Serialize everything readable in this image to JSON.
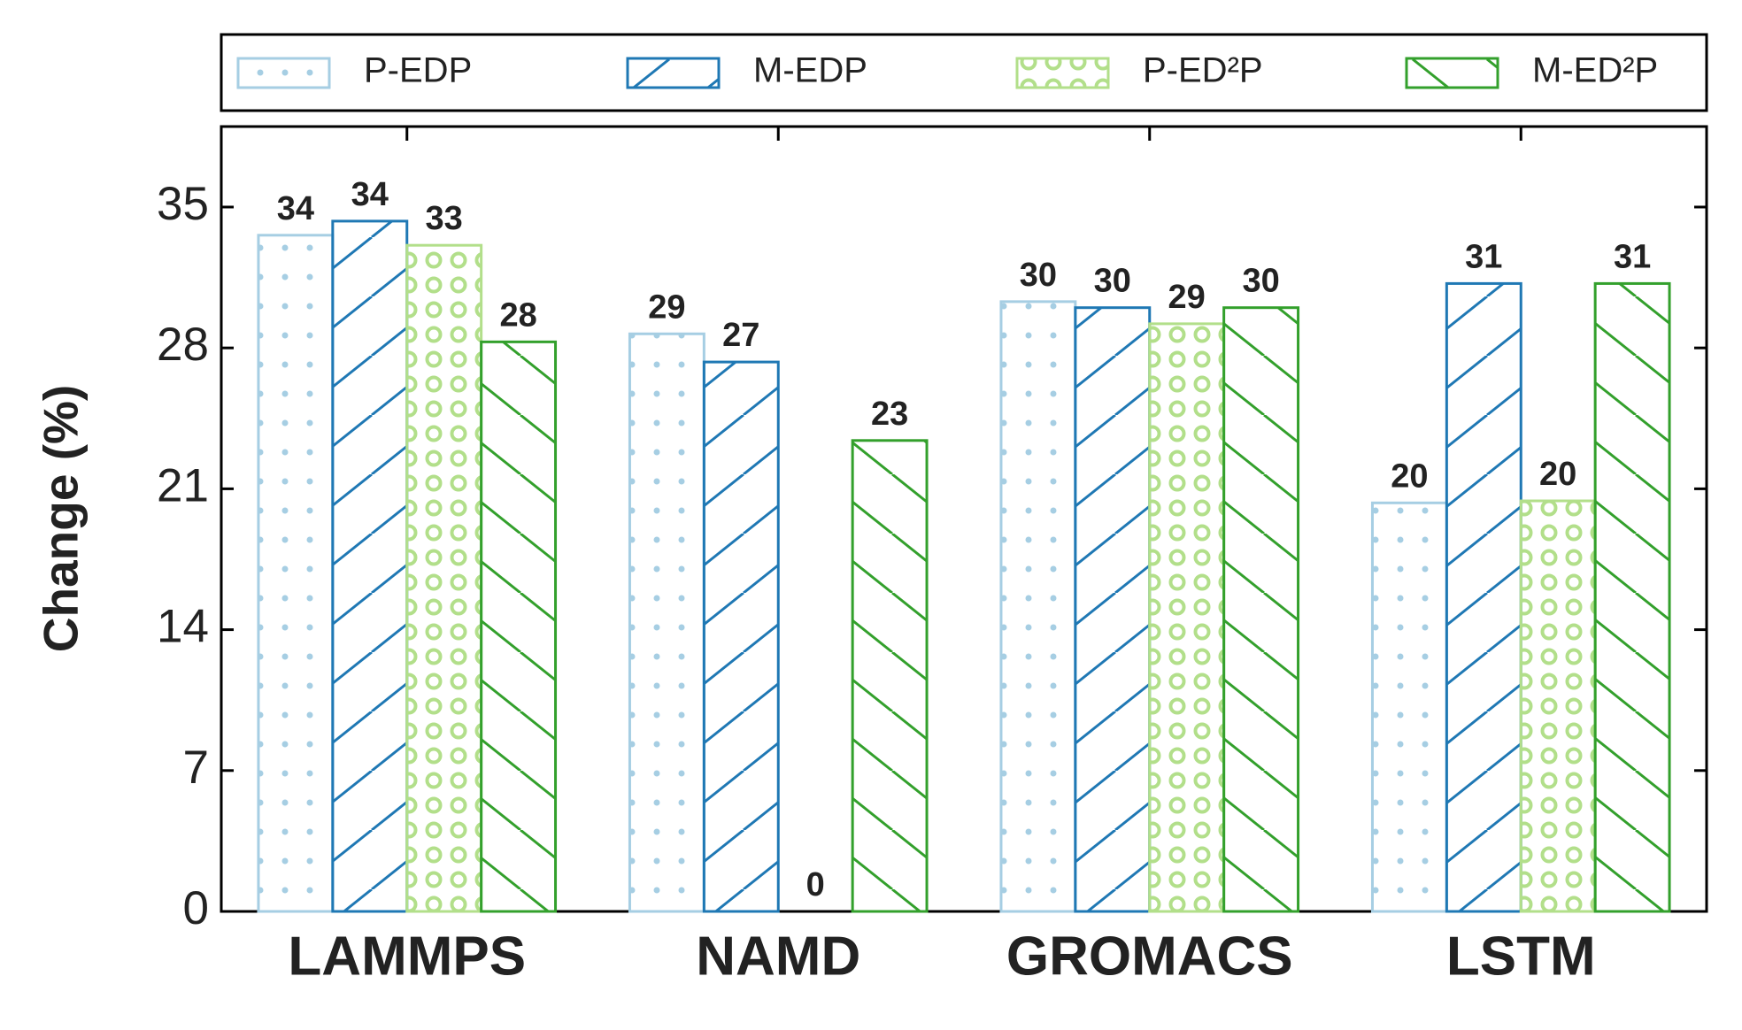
{
  "chart_data": {
    "type": "bar",
    "y_label": "Change (%)",
    "categories": [
      "LAMMPS",
      "NAMD",
      "GROMACS",
      "LSTM"
    ],
    "series": [
      {
        "name": "P-EDP",
        "color": "#a6cee3",
        "hatch": "dots",
        "values": [
          33.6,
          28.7,
          30.3,
          20.3
        ],
        "value_labels": [
          "34",
          "29",
          "30",
          "20"
        ]
      },
      {
        "name": "M-EDP",
        "color": "#1f78b4",
        "hatch": "slash",
        "values": [
          34.3,
          27.3,
          30.0,
          31.2
        ],
        "value_labels": [
          "34",
          "27",
          "30",
          "31"
        ]
      },
      {
        "name": "P-ED²P",
        "color": "#b2df8a",
        "hatch": "rings",
        "values": [
          33.1,
          0,
          29.2,
          20.4
        ],
        "value_labels": [
          "33",
          "0",
          "29",
          "20"
        ]
      },
      {
        "name": "M-ED²P",
        "color": "#33a02c",
        "hatch": "backslash",
        "values": [
          28.3,
          23.4,
          30.0,
          31.2
        ],
        "value_labels": [
          "28",
          "23",
          "30",
          "31"
        ]
      }
    ],
    "ylim": [
      0,
      39
    ],
    "yticks": [
      0,
      7,
      14,
      21,
      28,
      35
    ],
    "grid": false,
    "legend": "top"
  }
}
